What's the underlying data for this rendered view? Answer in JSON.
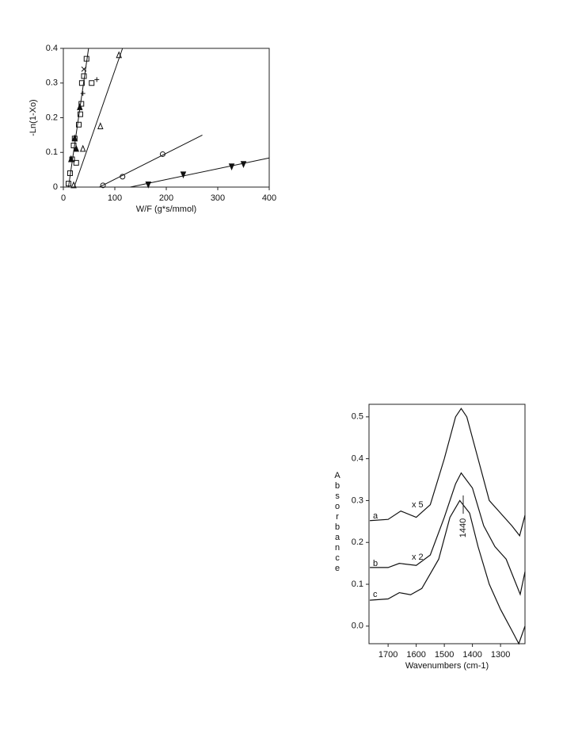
{
  "chart_data": [
    {
      "type": "scatter",
      "xlabel": "W/F (g*s/mmol)",
      "ylabel": "-Ln(1-Xo)",
      "xlim": [
        0,
        400
      ],
      "ylim": [
        0,
        0.4
      ],
      "xticks": [
        0,
        100,
        200,
        300,
        400
      ],
      "yticks": [
        0,
        0.1,
        0.2,
        0.3,
        0.4
      ],
      "color": "#111",
      "series": [
        {
          "marker": "square",
          "x": [
            10,
            13,
            17,
            20,
            22,
            25,
            30,
            33,
            35,
            36,
            40,
            45,
            55
          ],
          "y": [
            0.01,
            0.04,
            0.08,
            0.12,
            0.14,
            0.07,
            0.18,
            0.21,
            0.24,
            0.3,
            0.32,
            0.37,
            0.3
          ]
        },
        {
          "marker": "triangle-up-filled",
          "x": [
            15,
            25,
            32,
            22
          ],
          "y": [
            0.08,
            0.11,
            0.23,
            0.14
          ]
        },
        {
          "marker": "cross",
          "x": [
            40
          ],
          "y": [
            0.34
          ]
        },
        {
          "marker": "plus",
          "x": [
            65,
            38
          ],
          "y": [
            0.31,
            0.27
          ]
        },
        {
          "marker": "triangle-up",
          "x": [
            20,
            38,
            72,
            108
          ],
          "y": [
            0.005,
            0.11,
            0.175,
            0.38
          ]
        },
        {
          "marker": "circle",
          "x": [
            77,
            115,
            193
          ],
          "y": [
            0.005,
            0.03,
            0.095
          ]
        },
        {
          "marker": "triangle-down-filled",
          "x": [
            165,
            233,
            327,
            350
          ],
          "y": [
            0.008,
            0.037,
            0.06,
            0.067
          ]
        }
      ],
      "lines": [
        {
          "x": [
            10,
            49
          ],
          "y": [
            0,
            0.4
          ]
        },
        {
          "x": [
            21,
            115
          ],
          "y": [
            0,
            0.4
          ]
        },
        {
          "x": [
            70,
            270
          ],
          "y": [
            0,
            0.15
          ]
        },
        {
          "x": [
            130,
            400
          ],
          "y": [
            0,
            0.084
          ]
        }
      ]
    },
    {
      "type": "line",
      "xlabel": "Wavenumbers  (cm-1)",
      "ylabel": "Absorbance",
      "xlim": [
        1768,
        1213
      ],
      "ylim": [
        -0.042,
        0.53
      ],
      "xticks": [
        1700,
        1600,
        1500,
        1400,
        1300
      ],
      "yticks": [
        {
          "value": 0,
          "label": "0.0"
        },
        0.1,
        0.2,
        0.3,
        0.4,
        0.5
      ],
      "color": "#111",
      "annotations": [
        "a",
        "b",
        "c",
        "x 5",
        "x 2",
        "1440"
      ],
      "series": [
        {
          "x": [
            1765,
            1700,
            1655,
            1600,
            1550,
            1500,
            1460,
            1440,
            1420,
            1380,
            1340,
            1300,
            1260,
            1232,
            1213
          ],
          "y": [
            0.252,
            0.255,
            0.275,
            0.26,
            0.29,
            0.4,
            0.5,
            0.52,
            0.5,
            0.4,
            0.3,
            0.27,
            0.24,
            0.216,
            0.265
          ]
        },
        {
          "x": [
            1765,
            1700,
            1660,
            1600,
            1550,
            1500,
            1460,
            1440,
            1400,
            1360,
            1320,
            1280,
            1230,
            1213
          ],
          "y": [
            0.14,
            0.14,
            0.15,
            0.145,
            0.17,
            0.26,
            0.34,
            0.366,
            0.33,
            0.24,
            0.19,
            0.16,
            0.076,
            0.13
          ]
        },
        {
          "x": [
            1765,
            1700,
            1660,
            1620,
            1580,
            1520,
            1480,
            1445,
            1410,
            1380,
            1340,
            1300,
            1260,
            1235,
            1213
          ],
          "y": [
            0.062,
            0.065,
            0.08,
            0.075,
            0.09,
            0.16,
            0.26,
            0.3,
            0.27,
            0.19,
            0.1,
            0.04,
            -0.01,
            -0.042,
            0.0
          ]
        }
      ]
    }
  ]
}
